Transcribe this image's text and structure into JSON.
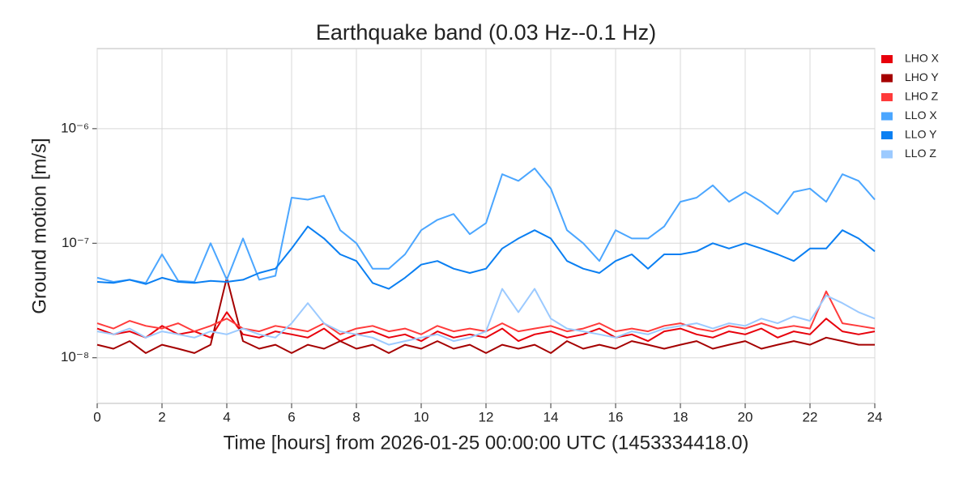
{
  "chart_data": {
    "type": "line",
    "title": "Earthquake band (0.03 Hz--0.1 Hz)",
    "xlabel": "Time [hours] from 2026-01-25 00:00:00 UTC (1453334418.0)",
    "ylabel": "Ground motion [m/s]",
    "yscale": "log",
    "grid": true,
    "legend": "outside right",
    "xlim": [
      0,
      24
    ],
    "xticks": [
      0,
      2,
      4,
      6,
      8,
      10,
      12,
      14,
      16,
      18,
      20,
      22,
      24
    ],
    "ylim": [
      4e-09,
      5e-06
    ],
    "yticks": [
      {
        "value": 1e-08,
        "label": "10⁻⁸"
      },
      {
        "value": 1e-07,
        "label": "10⁻⁷"
      },
      {
        "value": 1e-06,
        "label": "10⁻⁶"
      }
    ],
    "x": [
      0,
      0.5,
      1,
      1.5,
      2,
      2.5,
      3,
      3.5,
      4,
      4.5,
      5,
      5.5,
      6,
      6.5,
      7,
      7.5,
      8,
      8.5,
      9,
      9.5,
      10,
      10.5,
      11,
      11.5,
      12,
      12.5,
      13,
      13.5,
      14,
      14.5,
      15,
      15.5,
      16,
      16.5,
      17,
      17.5,
      18,
      18.5,
      19,
      19.5,
      20,
      20.5,
      21,
      21.5,
      22,
      22.5,
      23,
      23.5,
      24
    ],
    "series": [
      {
        "name": "LHO X",
        "color": "#e8000b",
        "values": [
          1.8e-08,
          1.6e-08,
          1.7e-08,
          1.5e-08,
          1.9e-08,
          1.6e-08,
          1.7e-08,
          1.5e-08,
          2.5e-08,
          1.6e-08,
          1.5e-08,
          1.7e-08,
          1.6e-08,
          1.5e-08,
          1.8e-08,
          1.4e-08,
          1.6e-08,
          1.7e-08,
          1.5e-08,
          1.6e-08,
          1.4e-08,
          1.7e-08,
          1.5e-08,
          1.6e-08,
          1.5e-08,
          1.8e-08,
          1.4e-08,
          1.6e-08,
          1.7e-08,
          1.5e-08,
          1.6e-08,
          1.8e-08,
          1.5e-08,
          1.6e-08,
          1.4e-08,
          1.7e-08,
          1.8e-08,
          1.6e-08,
          1.5e-08,
          1.7e-08,
          1.6e-08,
          1.8e-08,
          1.5e-08,
          1.7e-08,
          1.6e-08,
          2.2e-08,
          1.7e-08,
          1.6e-08,
          1.7e-08
        ]
      },
      {
        "name": "LHO Y",
        "color": "#a50000",
        "values": [
          1.3e-08,
          1.2e-08,
          1.4e-08,
          1.1e-08,
          1.3e-08,
          1.2e-08,
          1.1e-08,
          1.3e-08,
          5e-08,
          1.4e-08,
          1.2e-08,
          1.3e-08,
          1.1e-08,
          1.3e-08,
          1.2e-08,
          1.4e-08,
          1.2e-08,
          1.3e-08,
          1.1e-08,
          1.3e-08,
          1.2e-08,
          1.4e-08,
          1.2e-08,
          1.3e-08,
          1.1e-08,
          1.3e-08,
          1.2e-08,
          1.3e-08,
          1.1e-08,
          1.4e-08,
          1.2e-08,
          1.3e-08,
          1.2e-08,
          1.4e-08,
          1.3e-08,
          1.2e-08,
          1.3e-08,
          1.4e-08,
          1.2e-08,
          1.3e-08,
          1.4e-08,
          1.2e-08,
          1.3e-08,
          1.4e-08,
          1.3e-08,
          1.5e-08,
          1.4e-08,
          1.3e-08,
          1.3e-08
        ]
      },
      {
        "name": "LHO Z",
        "color": "#ff3b3b",
        "values": [
          2e-08,
          1.8e-08,
          2.1e-08,
          1.9e-08,
          1.8e-08,
          2e-08,
          1.7e-08,
          1.9e-08,
          2.2e-08,
          1.8e-08,
          1.7e-08,
          1.9e-08,
          1.8e-08,
          1.7e-08,
          2e-08,
          1.6e-08,
          1.8e-08,
          1.9e-08,
          1.7e-08,
          1.8e-08,
          1.6e-08,
          1.9e-08,
          1.7e-08,
          1.8e-08,
          1.7e-08,
          2e-08,
          1.7e-08,
          1.8e-08,
          1.9e-08,
          1.7e-08,
          1.8e-08,
          2e-08,
          1.7e-08,
          1.8e-08,
          1.7e-08,
          1.9e-08,
          2e-08,
          1.8e-08,
          1.7e-08,
          1.9e-08,
          1.8e-08,
          2e-08,
          1.8e-08,
          1.9e-08,
          1.8e-08,
          3.8e-08,
          2e-08,
          1.9e-08,
          1.8e-08
        ]
      },
      {
        "name": "LLO X",
        "color": "#4ba6ff",
        "values": [
          5e-08,
          4.6e-08,
          4.8e-08,
          4.5e-08,
          8e-08,
          4.7e-08,
          4.6e-08,
          1e-07,
          4.8e-08,
          1.1e-07,
          4.8e-08,
          5.2e-08,
          2.5e-07,
          2.4e-07,
          2.6e-07,
          1.3e-07,
          1e-07,
          6e-08,
          6e-08,
          8e-08,
          1.3e-07,
          1.6e-07,
          1.8e-07,
          1.2e-07,
          1.5e-07,
          4e-07,
          3.5e-07,
          4.5e-07,
          3e-07,
          1.3e-07,
          1e-07,
          7e-08,
          1.3e-07,
          1.1e-07,
          1.1e-07,
          1.4e-07,
          2.3e-07,
          2.5e-07,
          3.2e-07,
          2.3e-07,
          2.8e-07,
          2.3e-07,
          1.8e-07,
          2.8e-07,
          3e-07,
          2.3e-07,
          4e-07,
          3.5e-07,
          2.4e-07
        ]
      },
      {
        "name": "LLO Y",
        "color": "#0a7ff2",
        "values": [
          4.6e-08,
          4.5e-08,
          4.8e-08,
          4.4e-08,
          5e-08,
          4.6e-08,
          4.5e-08,
          4.7e-08,
          4.6e-08,
          4.8e-08,
          5.5e-08,
          6e-08,
          9e-08,
          1.4e-07,
          1.1e-07,
          8e-08,
          7e-08,
          4.5e-08,
          4e-08,
          5e-08,
          6.5e-08,
          7e-08,
          6e-08,
          5.5e-08,
          6e-08,
          9e-08,
          1.1e-07,
          1.3e-07,
          1.1e-07,
          7e-08,
          6e-08,
          5.5e-08,
          7e-08,
          8e-08,
          6e-08,
          8e-08,
          8e-08,
          8.5e-08,
          1e-07,
          9e-08,
          1e-07,
          9e-08,
          8e-08,
          7e-08,
          9e-08,
          9e-08,
          1.3e-07,
          1.1e-07,
          8.5e-08
        ]
      },
      {
        "name": "LLO Z",
        "color": "#9ccaff",
        "values": [
          1.7e-08,
          1.6e-08,
          1.8e-08,
          1.5e-08,
          1.7e-08,
          1.6e-08,
          1.5e-08,
          1.7e-08,
          1.6e-08,
          1.8e-08,
          1.6e-08,
          1.5e-08,
          2e-08,
          3e-08,
          2e-08,
          1.7e-08,
          1.6e-08,
          1.5e-08,
          1.3e-08,
          1.4e-08,
          1.5e-08,
          1.6e-08,
          1.4e-08,
          1.5e-08,
          1.7e-08,
          4e-08,
          2.5e-08,
          4e-08,
          2.2e-08,
          1.8e-08,
          1.7e-08,
          1.6e-08,
          1.5e-08,
          1.7e-08,
          1.6e-08,
          1.8e-08,
          1.9e-08,
          2e-08,
          1.8e-08,
          2e-08,
          1.9e-08,
          2.2e-08,
          2e-08,
          2.3e-08,
          2.1e-08,
          3.5e-08,
          3e-08,
          2.5e-08,
          2.2e-08
        ]
      }
    ]
  }
}
